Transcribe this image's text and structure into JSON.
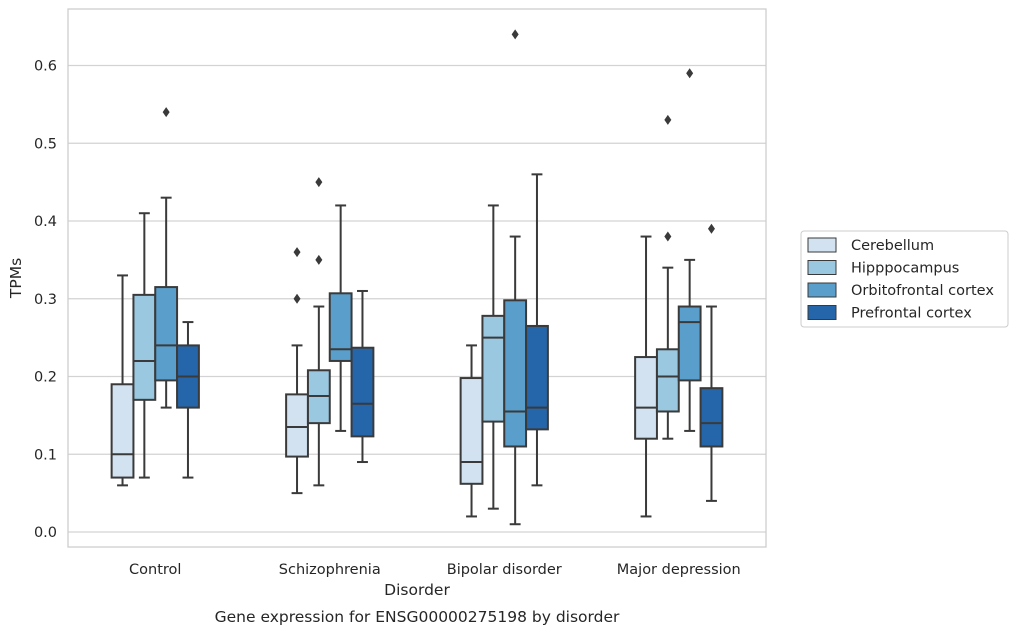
{
  "chart_data": {
    "type": "box",
    "xlabel": "Disorder",
    "ylabel": "TPMs",
    "caption": "Gene expression for ENSG00000275198 by disorder",
    "ylim": [
      -0.02,
      0.672
    ],
    "yticks": [
      "0.0",
      "0.1",
      "0.2",
      "0.3",
      "0.4",
      "0.5",
      "0.6"
    ],
    "grid": "horizontal",
    "legend_position": "right, outside plot",
    "categories": [
      "Control",
      "Schizophrenia",
      "Bipolar disorder",
      "Major depression"
    ],
    "series": [
      {
        "name": "Cerebellum",
        "color": "#d2e2f1",
        "boxes": [
          {
            "whisker_low": 0.06,
            "q1": 0.07,
            "median": 0.1,
            "q3": 0.19,
            "whisker_high": 0.33,
            "outliers": []
          },
          {
            "whisker_low": 0.05,
            "q1": 0.097,
            "median": 0.135,
            "q3": 0.177,
            "whisker_high": 0.24,
            "outliers": [
              0.3,
              0.36
            ]
          },
          {
            "whisker_low": 0.02,
            "q1": 0.062,
            "median": 0.09,
            "q3": 0.198,
            "whisker_high": 0.24,
            "outliers": []
          },
          {
            "whisker_low": 0.02,
            "q1": 0.12,
            "median": 0.16,
            "q3": 0.225,
            "whisker_high": 0.38,
            "outliers": []
          }
        ]
      },
      {
        "name": "Hipppocampus",
        "color": "#9ac8e0",
        "boxes": [
          {
            "whisker_low": 0.07,
            "q1": 0.17,
            "median": 0.22,
            "q3": 0.305,
            "whisker_high": 0.41,
            "outliers": []
          },
          {
            "whisker_low": 0.06,
            "q1": 0.14,
            "median": 0.175,
            "q3": 0.208,
            "whisker_high": 0.29,
            "outliers": [
              0.35,
              0.45
            ]
          },
          {
            "whisker_low": 0.03,
            "q1": 0.142,
            "median": 0.25,
            "q3": 0.278,
            "whisker_high": 0.42,
            "outliers": []
          },
          {
            "whisker_low": 0.12,
            "q1": 0.155,
            "median": 0.2,
            "q3": 0.235,
            "whisker_high": 0.34,
            "outliers": [
              0.38,
              0.53
            ]
          }
        ]
      },
      {
        "name": "Orbitofrontal cortex",
        "color": "#5a9fcc",
        "boxes": [
          {
            "whisker_low": 0.16,
            "q1": 0.195,
            "median": 0.24,
            "q3": 0.315,
            "whisker_high": 0.43,
            "outliers": [
              0.54
            ]
          },
          {
            "whisker_low": 0.13,
            "q1": 0.22,
            "median": 0.235,
            "q3": 0.307,
            "whisker_high": 0.42,
            "outliers": []
          },
          {
            "whisker_low": 0.01,
            "q1": 0.11,
            "median": 0.155,
            "q3": 0.298,
            "whisker_high": 0.38,
            "outliers": [
              0.64
            ]
          },
          {
            "whisker_low": 0.13,
            "q1": 0.195,
            "median": 0.27,
            "q3": 0.29,
            "whisker_high": 0.35,
            "outliers": [
              0.59
            ]
          }
        ]
      },
      {
        "name": "Prefrontal cortex",
        "color": "#2565a9",
        "boxes": [
          {
            "whisker_low": 0.07,
            "q1": 0.16,
            "median": 0.2,
            "q3": 0.24,
            "whisker_high": 0.27,
            "outliers": []
          },
          {
            "whisker_low": 0.09,
            "q1": 0.123,
            "median": 0.165,
            "q3": 0.237,
            "whisker_high": 0.31,
            "outliers": []
          },
          {
            "whisker_low": 0.06,
            "q1": 0.132,
            "median": 0.16,
            "q3": 0.265,
            "whisker_high": 0.46,
            "outliers": []
          },
          {
            "whisker_low": 0.04,
            "q1": 0.11,
            "median": 0.14,
            "q3": 0.185,
            "whisker_high": 0.29,
            "outliers": [
              0.39
            ]
          }
        ]
      }
    ]
  }
}
